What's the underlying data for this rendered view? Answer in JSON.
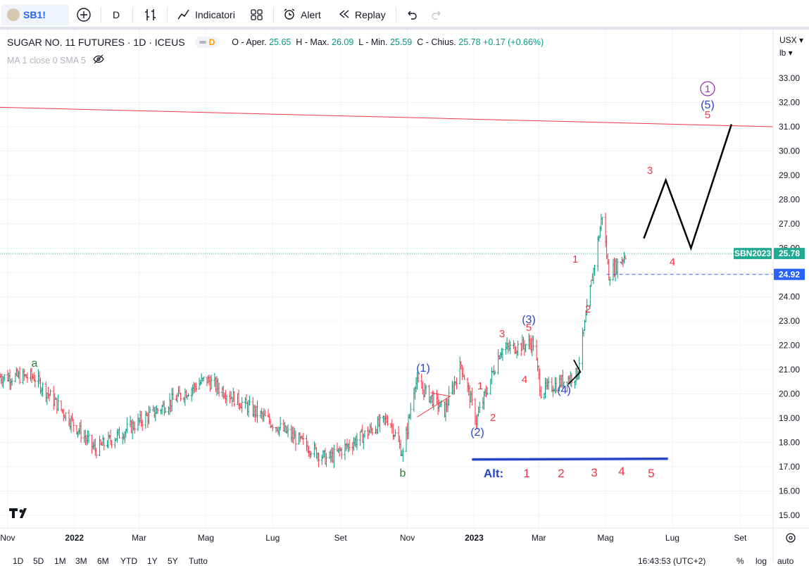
{
  "toolbar": {
    "symbol": "SB1!",
    "interval": "D",
    "indicators_label": "Indicatori",
    "alert_label": "Alert",
    "replay_label": "Replay"
  },
  "legend": {
    "title": "SUGAR NO. 11 FUTURES · 1D · ICEUS",
    "badge": "D",
    "open_label": "O - Aper.",
    "open": "25.65",
    "high_label": "H - Max.",
    "high": "26.09",
    "low_label": "L - Min.",
    "low": "25.59",
    "close_label": "C - Chius.",
    "close": "25.78",
    "change": "+0.17 (+0.66%)",
    "ma": "MA 1 close 0 SMA 5"
  },
  "price_axis": {
    "currency": "USX",
    "unit": "lb",
    "ticks": [
      "33.00",
      "32.00",
      "31.00",
      "30.00",
      "29.00",
      "28.00",
      "27.00",
      "26.00",
      "25.00",
      "24.00",
      "23.00",
      "22.00",
      "21.00",
      "20.00",
      "19.00",
      "18.00",
      "17.00",
      "16.00",
      "15.00"
    ],
    "last_label": "SBN2023",
    "last_price": "25.78",
    "level_price": "24.92"
  },
  "time_axis": [
    "Nov",
    "2022",
    "Mar",
    "Mag",
    "Lug",
    "Set",
    "Nov",
    "2023",
    "Mar",
    "Mag",
    "Lug",
    "Set"
  ],
  "annotations": {
    "a": "a",
    "b": "b",
    "w1p": "(1)",
    "w2p": "(2)",
    "w3p": "(3)",
    "w4p": "(4)",
    "w5p": "(5)",
    "w1c": "1",
    "alt": "Alt:",
    "alt_nums": [
      "1",
      "2",
      "3",
      "4",
      "5"
    ]
  },
  "bottom": {
    "ranges": [
      "1D",
      "5D",
      "1M",
      "3M",
      "6M",
      "YTD",
      "1Y",
      "5Y",
      "Tutto"
    ],
    "time": "16:43:53 (UTC+2)",
    "pct": "%",
    "log": "log",
    "auto": "auto"
  },
  "chart_data": {
    "type": "ohlc",
    "series_name": "SUGAR NO. 11 FUTURES",
    "y_range": [
      14.6,
      34.0
    ],
    "x_range": [
      "2021-10-25",
      "2023-10-01"
    ],
    "key_points": [
      {
        "x": "2021-11-25",
        "y": 20.7
      },
      {
        "x": "2022-01-20",
        "y": 17.7
      },
      {
        "x": "2022-05-01",
        "y": 20.6
      },
      {
        "x": "2022-08-20",
        "y": 17.3
      },
      {
        "x": "2022-10-15",
        "y": 19.0
      },
      {
        "x": "2022-10-28",
        "y": 17.5
      },
      {
        "x": "2022-11-08",
        "y": 20.5
      },
      {
        "x": "2022-12-05",
        "y": 19.3
      },
      {
        "x": "2022-12-20",
        "y": 21.2
      },
      {
        "x": "2023-01-03",
        "y": 18.9
      },
      {
        "x": "2023-01-25",
        "y": 21.8
      },
      {
        "x": "2023-02-24",
        "y": 22.1
      },
      {
        "x": "2023-03-03",
        "y": 20.1
      },
      {
        "x": "2023-04-05",
        "y": 20.8
      },
      {
        "x": "2023-04-28",
        "y": 27.4
      },
      {
        "x": "2023-05-04",
        "y": 24.9
      },
      {
        "x": "2023-05-20",
        "y": 25.78
      }
    ],
    "projection": [
      {
        "x": "2023-06-05",
        "y": 26.4
      },
      {
        "x": "2023-06-25",
        "y": 28.8
      },
      {
        "x": "2023-07-18",
        "y": 26.0
      },
      {
        "x": "2023-08-24",
        "y": 31.1
      }
    ],
    "resistance_line": [
      {
        "x": "2021-10-25",
        "y": 31.8
      },
      {
        "x": "2023-10-01",
        "y": 31.0
      }
    ],
    "support_line_y": 24.92,
    "alt_baseline_y": 17.3
  },
  "colors": {
    "up": "#089981",
    "down": "#f23645",
    "red_label": "#f23645",
    "blue_label": "#2845c7",
    "green_label": "#2e7d32",
    "purple": "#9c27b0",
    "projection": "#000000",
    "trendline": "#f23645",
    "price_badge": "#22ab94",
    "level_badge": "#2962ff"
  }
}
